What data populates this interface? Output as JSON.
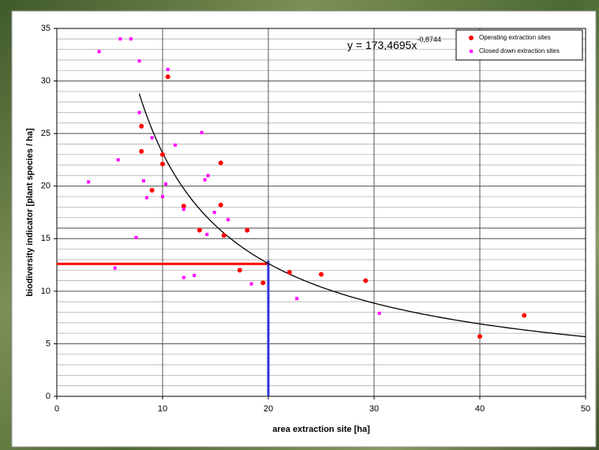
{
  "chart_data": {
    "type": "scatter",
    "xlabel": "area extraction site [ha]",
    "ylabel": "biodiversity indicator [plant species / ha]",
    "xlim": [
      0,
      50
    ],
    "xticks": [
      0,
      10,
      20,
      30,
      40,
      50
    ],
    "ylim": [
      0,
      35
    ],
    "yticks": [
      0,
      5,
      10,
      15,
      20,
      25,
      30,
      35
    ],
    "y_grid_step": 1,
    "grid": true,
    "legend": "upper right",
    "series": [
      {
        "name": "Operating extraction sites",
        "color": "#ff0000",
        "marker": "circle",
        "x": [
          8,
          8,
          9,
          10,
          10,
          10.5,
          12,
          13.5,
          15.5,
          15.5,
          15.8,
          18,
          17.3,
          19.5,
          22,
          25,
          29.2,
          40,
          44.2
        ],
        "values": [
          25.7,
          23.3,
          19.6,
          23,
          22.1,
          30.4,
          18.1,
          15.8,
          22.2,
          18.2,
          15.3,
          15.8,
          12,
          10.8,
          11.8,
          11.6,
          11,
          5.7,
          7.7
        ]
      },
      {
        "name": "Closed down extraction sites",
        "color": "#ff00ff",
        "marker": "square",
        "x": [
          3,
          4,
          5.5,
          5.8,
          6,
          7,
          7.5,
          7.8,
          7.8,
          8.2,
          8.5,
          9,
          10,
          10.3,
          10.5,
          11.2,
          12,
          12,
          13,
          13.7,
          14,
          14.3,
          14.2,
          14.9,
          16.2,
          18.4,
          22.7,
          30.5
        ],
        "values": [
          20.4,
          32.8,
          12.2,
          22.5,
          34,
          34,
          15.1,
          31.9,
          27,
          20.5,
          18.9,
          24.6,
          19,
          20.2,
          31.1,
          23.9,
          17.8,
          11.3,
          11.5,
          25.1,
          20.6,
          21,
          15.4,
          17.5,
          16.8,
          10.7,
          9.3,
          7.9
        ]
      }
    ],
    "trend": {
      "label": "y = 173,4695x",
      "exponent_label": "-0,8744",
      "coefficient": 173.4695,
      "exponent": -0.8744,
      "x_start": 7.8,
      "x_end": 50,
      "color": "#000000"
    },
    "reference_lines": [
      {
        "orientation": "horizontal",
        "value": 12.6,
        "from": 0,
        "to": 20,
        "color": "#ff0000",
        "width": 3
      },
      {
        "orientation": "vertical",
        "value": 20,
        "from": 0,
        "to": 12.9,
        "color": "#3333dd",
        "width": 3
      },
      {
        "orientation": "horizontal",
        "value": 16,
        "from": 0,
        "to": 50,
        "color": "#444444",
        "width": 1
      }
    ]
  }
}
